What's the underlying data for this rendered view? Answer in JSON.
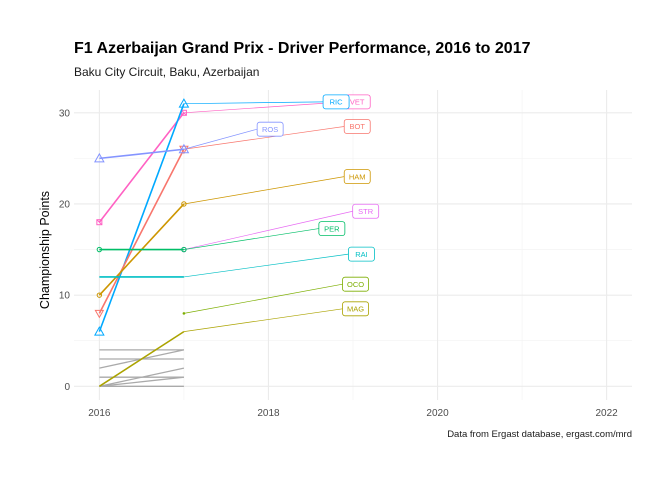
{
  "chart_data": {
    "type": "line",
    "title": "F1 Azerbaijan Grand Prix - Driver Performance, 2016 to 2017",
    "subtitle": "Baku City Circuit, Baku, Azerbaijan",
    "caption": "Data from Ergast database, ergast.com/mrd",
    "xlabel": "",
    "ylabel": "Championship Points",
    "xlim": [
      2015.7,
      2022.3
    ],
    "ylim": [
      -1.5,
      32.5
    ],
    "x_ticks": [
      2016,
      2018,
      2020,
      2022
    ],
    "y_ticks": [
      0,
      10,
      20,
      30
    ],
    "grid": true,
    "series": [
      {
        "name": "VET",
        "color": "#FF61C3",
        "x": [
          2016,
          2017
        ],
        "y": [
          18,
          30
        ],
        "marker": "square-cross",
        "label_x": 2019.05,
        "label_y": 31.2,
        "dashed": false
      },
      {
        "name": "RIC",
        "color": "#00A9FF",
        "x": [
          2016,
          2017
        ],
        "y": [
          6,
          31
        ],
        "marker": "triangle",
        "label_x": 2018.8,
        "label_y": 31.2,
        "dashed": true
      },
      {
        "name": "BOT",
        "color": "#F8766D",
        "x": [
          2016,
          2017
        ],
        "y": [
          8,
          26
        ],
        "marker": "triangle-down",
        "label_x": 2019.05,
        "label_y": 28.5,
        "dashed": false
      },
      {
        "name": "ROS",
        "color": "#8494FF",
        "x": [
          2016,
          2017
        ],
        "y": [
          25,
          26
        ],
        "marker": "triangle",
        "label_x": 2018.02,
        "label_y": 28.2,
        "dashed": false
      },
      {
        "name": "HAM",
        "color": "#CD9600",
        "x": [
          2016,
          2017
        ],
        "y": [
          10,
          20
        ],
        "marker": "circle",
        "label_x": 2019.05,
        "label_y": 23,
        "dashed": false
      },
      {
        "name": "STR",
        "color": "#E76BF3",
        "x": [
          2016,
          2017
        ],
        "y": [
          null,
          15
        ],
        "marker": "circle",
        "label_x": 2019.15,
        "label_y": 19.2,
        "dashed": false
      },
      {
        "name": "PER",
        "color": "#00BE67",
        "x": [
          2016,
          2017
        ],
        "y": [
          15,
          15
        ],
        "marker": "circle",
        "label_x": 2018.75,
        "label_y": 17.3,
        "dashed": false
      },
      {
        "name": "RAI",
        "color": "#00BFC4",
        "x": [
          2016,
          2017
        ],
        "y": [
          12,
          12
        ],
        "marker": "none",
        "label_x": 2019.1,
        "label_y": 14.5,
        "dashed": false
      },
      {
        "name": "OCO",
        "color": "#7CAE00",
        "x": [
          2016,
          2017
        ],
        "y": [
          null,
          8
        ],
        "marker": "dot",
        "label_x": 2019.03,
        "label_y": 11.2,
        "dashed": false
      },
      {
        "name": "MAG",
        "color": "#ABA300",
        "x": [
          2016,
          2017
        ],
        "y": [
          0,
          6
        ],
        "marker": "none",
        "label_x": 2019.03,
        "label_y": 8.5,
        "dashed": false
      }
    ],
    "background_series": [
      {
        "color": "#AAAAAA",
        "x": [
          2016,
          2017
        ],
        "y": [
          4,
          4
        ]
      },
      {
        "color": "#AAAAAA",
        "x": [
          2016,
          2017
        ],
        "y": [
          3,
          3
        ]
      },
      {
        "color": "#AAAAAA",
        "x": [
          2016,
          2017
        ],
        "y": [
          2,
          4
        ]
      },
      {
        "color": "#AAAAAA",
        "x": [
          2016,
          2017
        ],
        "y": [
          1,
          1
        ]
      },
      {
        "color": "#AAAAAA",
        "x": [
          2016,
          2017
        ],
        "y": [
          0,
          2
        ]
      },
      {
        "color": "#AAAAAA",
        "x": [
          2016,
          2017
        ],
        "y": [
          0,
          1
        ]
      },
      {
        "color": "#AAAAAA",
        "x": [
          2016,
          2017
        ],
        "y": [
          0,
          0
        ]
      }
    ]
  }
}
